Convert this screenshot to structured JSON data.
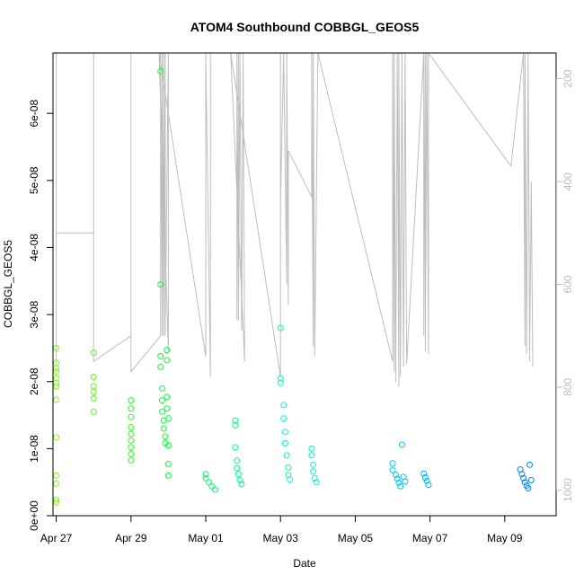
{
  "chart_data": {
    "type": "scatter",
    "title": "ATOM4 Southbound COBBGL_GEOS5",
    "xlabel": "Date",
    "ylabel": "COBBGL_GEOS5",
    "x_axis": {
      "type": "date",
      "range": [
        "2016-04-26T21:55",
        "2016-05-10T09:00"
      ],
      "ticks": [
        "2016-04-27",
        "2016-04-29",
        "2016-05-01",
        "2016-05-03",
        "2016-05-05",
        "2016-05-07",
        "2016-05-09"
      ],
      "tick_labels": [
        "Apr 27",
        "Apr 29",
        "May 01",
        "May 03",
        "May 05",
        "May 07",
        "May 09"
      ]
    },
    "y_axis": {
      "range": [
        0,
        6.9e-08
      ],
      "ticks": [
        0,
        1e-08,
        2e-08,
        3e-08,
        4e-08,
        5e-08,
        6e-08
      ],
      "tick_labels": [
        "0e+00",
        "1e-08",
        "2e-08",
        "3e-08",
        "4e-08",
        "5e-08",
        "6e-08"
      ]
    },
    "y2_axis": {
      "range": [
        1050,
        150
      ],
      "ticks": [
        200,
        400,
        600,
        800,
        1000
      ],
      "tick_labels": [
        "200",
        "400",
        "600",
        "800",
        "1000"
      ],
      "color": "#bdbdbd"
    },
    "grid": false,
    "legend": "none",
    "series": [
      {
        "marker": "open-circle",
        "color_scale": "time",
        "colors": [
          "#7fff00",
          "#00ff40",
          "#00ffbf",
          "#00bfff",
          "#0080ff"
        ],
        "points": [
          [
            "2016-04-27T00:00",
            2.5e-08
          ],
          [
            "2016-04-27T00:00",
            2.28e-08
          ],
          [
            "2016-04-27T00:00",
            2.2e-08
          ],
          [
            "2016-04-27T00:00",
            2.15e-08
          ],
          [
            "2016-04-27T00:00",
            2.05e-08
          ],
          [
            "2016-04-27T00:00",
            1.98e-08
          ],
          [
            "2016-04-27T00:00",
            1.93e-08
          ],
          [
            "2016-04-27T00:00",
            1.73e-08
          ],
          [
            "2016-04-27T00:00",
            1.17e-08
          ],
          [
            "2016-04-27T00:00",
            6e-09
          ],
          [
            "2016-04-27T00:00",
            4.8e-09
          ],
          [
            "2016-04-27T00:00",
            2.4e-09
          ],
          [
            "2016-04-27T00:00",
            2e-09
          ],
          [
            "2016-04-28T00:00",
            2.43e-08
          ],
          [
            "2016-04-28T00:00",
            2.07e-08
          ],
          [
            "2016-04-28T00:00",
            1.93e-08
          ],
          [
            "2016-04-28T00:00",
            1.85e-08
          ],
          [
            "2016-04-28T00:00",
            1.75e-08
          ],
          [
            "2016-04-28T00:00",
            1.55e-08
          ],
          [
            "2016-04-29T00:00",
            1.72e-08
          ],
          [
            "2016-04-29T00:00",
            1.6e-08
          ],
          [
            "2016-04-29T00:00",
            1.47e-08
          ],
          [
            "2016-04-29T00:00",
            1.32e-08
          ],
          [
            "2016-04-29T00:00",
            1.22e-08
          ],
          [
            "2016-04-29T00:00",
            1.12e-08
          ],
          [
            "2016-04-29T00:00",
            1.02e-08
          ],
          [
            "2016-04-29T00:00",
            9.2e-09
          ],
          [
            "2016-04-29T00:00",
            8.3e-09
          ],
          [
            "2016-04-29T19:00",
            6.63e-08
          ],
          [
            "2016-04-29T19:00",
            3.45e-08
          ],
          [
            "2016-04-29T19:00",
            2.38e-08
          ],
          [
            "2016-04-29T19:00",
            2.22e-08
          ],
          [
            "2016-04-29T20:00",
            1.9e-08
          ],
          [
            "2016-04-29T20:00",
            1.72e-08
          ],
          [
            "2016-04-29T20:00",
            1.55e-08
          ],
          [
            "2016-04-29T21:00",
            1.42e-08
          ],
          [
            "2016-04-29T21:00",
            1.3e-08
          ],
          [
            "2016-04-29T22:00",
            1.18e-08
          ],
          [
            "2016-04-29T22:00",
            1.08e-08
          ],
          [
            "2016-04-29T23:00",
            2.47e-08
          ],
          [
            "2016-04-29T23:00",
            2.32e-08
          ],
          [
            "2016-04-29T23:00",
            1.77e-08
          ],
          [
            "2016-04-29T23:00",
            1.6e-08
          ],
          [
            "2016-04-30T00:00",
            1.45e-08
          ],
          [
            "2016-04-30T00:00",
            1.05e-08
          ],
          [
            "2016-04-30T00:00",
            7.7e-09
          ],
          [
            "2016-04-30T00:00",
            6e-09
          ],
          [
            "2016-05-01T00:00",
            6.2e-09
          ],
          [
            "2016-05-01T00:00",
            5.6e-09
          ],
          [
            "2016-05-01T02:00",
            5e-09
          ],
          [
            "2016-05-01T04:00",
            4.4e-09
          ],
          [
            "2016-05-01T06:00",
            3.9e-09
          ],
          [
            "2016-05-01T19:00",
            1.42e-08
          ],
          [
            "2016-05-01T19:00",
            1.35e-08
          ],
          [
            "2016-05-01T19:00",
            1.02e-08
          ],
          [
            "2016-05-01T20:00",
            8.2e-09
          ],
          [
            "2016-05-01T20:00",
            7.1e-09
          ],
          [
            "2016-05-01T21:00",
            6.2e-09
          ],
          [
            "2016-05-01T22:00",
            5.3e-09
          ],
          [
            "2016-05-01T23:00",
            4.7e-09
          ],
          [
            "2016-05-03T00:00",
            2.8e-08
          ],
          [
            "2016-05-03T00:00",
            2.05e-08
          ],
          [
            "2016-05-03T00:00",
            1.98e-08
          ],
          [
            "2016-05-03T02:00",
            1.65e-08
          ],
          [
            "2016-05-03T02:00",
            1.45e-08
          ],
          [
            "2016-05-03T03:00",
            1.25e-08
          ],
          [
            "2016-05-03T03:00",
            1.08e-08
          ],
          [
            "2016-05-03T04:00",
            9e-09
          ],
          [
            "2016-05-03T05:00",
            7.2e-09
          ],
          [
            "2016-05-03T05:00",
            6.1e-09
          ],
          [
            "2016-05-03T06:00",
            5.4e-09
          ],
          [
            "2016-05-03T20:00",
            1e-08
          ],
          [
            "2016-05-03T20:00",
            9e-09
          ],
          [
            "2016-05-03T21:00",
            7.6e-09
          ],
          [
            "2016-05-03T21:00",
            6.6e-09
          ],
          [
            "2016-05-03T22:00",
            5.6e-09
          ],
          [
            "2016-05-03T23:00",
            5e-09
          ],
          [
            "2016-05-06T00:00",
            7.8e-09
          ],
          [
            "2016-05-06T00:00",
            6.8e-09
          ],
          [
            "2016-05-06T02:00",
            6.1e-09
          ],
          [
            "2016-05-06T03:00",
            5.5e-09
          ],
          [
            "2016-05-06T04:00",
            4.9e-09
          ],
          [
            "2016-05-06T05:00",
            4.4e-09
          ],
          [
            "2016-05-06T06:00",
            1.06e-08
          ],
          [
            "2016-05-06T07:00",
            5.8e-09
          ],
          [
            "2016-05-06T08:00",
            5.1e-09
          ],
          [
            "2016-05-06T20:00",
            6.3e-09
          ],
          [
            "2016-05-06T21:00",
            5.7e-09
          ],
          [
            "2016-05-06T22:00",
            5.2e-09
          ],
          [
            "2016-05-06T23:00",
            4.6e-09
          ],
          [
            "2016-05-09T10:00",
            6.9e-09
          ],
          [
            "2016-05-09T11:00",
            6.2e-09
          ],
          [
            "2016-05-09T12:00",
            5.6e-09
          ],
          [
            "2016-05-09T13:00",
            5e-09
          ],
          [
            "2016-05-09T14:00",
            4.5e-09
          ],
          [
            "2016-05-09T15:00",
            4.1e-09
          ],
          [
            "2016-05-09T16:00",
            7.6e-09
          ],
          [
            "2016-05-09T17:00",
            5.3e-09
          ]
        ]
      }
    ],
    "secondary_line": {
      "color": "#bdbdbd",
      "style": "thin-line",
      "note": ""
    }
  }
}
